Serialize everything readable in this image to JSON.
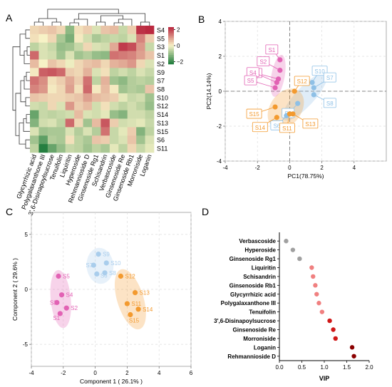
{
  "panel_letters": [
    "A",
    "B",
    "C",
    "D"
  ],
  "chart_data": [
    {
      "panel": "A",
      "type": "heatmap",
      "rows": [
        "S4",
        "S5",
        "S3",
        "S1",
        "S2",
        "S9",
        "S7",
        "S8",
        "S10",
        "S12",
        "S14",
        "S13",
        "S15",
        "S6",
        "S11"
      ],
      "columns": [
        "Glycyrrhizic acid",
        "Polygalaxanthone III",
        "3',6-Disinapoylsucrose",
        "Tenuifolin",
        "Liquiritin",
        "Hyperoside",
        "Rehmannioside D",
        "Ginsenoside Rg1",
        "Schisandrin",
        "Verbascoside",
        "Ginsenoside Re",
        "Ginsenoside Rb1",
        "Morroniside",
        "Loganin"
      ],
      "values": [
        [
          0.3,
          0.4,
          0.5,
          0.3,
          -1.1,
          0.2,
          0.4,
          -0.3,
          0.5,
          0.6,
          -0.5,
          0.4,
          2.1,
          2.2
        ],
        [
          0.2,
          0.0,
          0.3,
          -0.8,
          -1.3,
          0.1,
          -0.4,
          -0.8,
          -0.6,
          -0.5,
          -0.6,
          -0.3,
          1.2,
          0.4
        ],
        [
          -0.6,
          -0.3,
          -0.5,
          -1.0,
          -0.9,
          -0.5,
          0.3,
          -0.3,
          -0.4,
          0.8,
          2.0,
          1.8,
          1.0,
          -0.5
        ],
        [
          1.5,
          -0.3,
          -0.4,
          -0.9,
          -0.3,
          -0.9,
          -0.7,
          -1.0,
          -1.1,
          1.4,
          1.3,
          1.2,
          0.9,
          0.5
        ],
        [
          0.6,
          0.0,
          0.5,
          0.3,
          -0.1,
          0.3,
          0.5,
          0.6,
          0.3,
          0.7,
          0.8,
          1.0,
          0.3,
          -0.3
        ],
        [
          0.1,
          1.6,
          1.7,
          1.5,
          0.4,
          0.3,
          0.7,
          -0.3,
          0.2,
          -0.6,
          -0.4,
          -0.6,
          -0.3,
          -0.5
        ],
        [
          1.4,
          1.1,
          0.2,
          0.4,
          0.8,
          0.4,
          1.4,
          -0.6,
          0.7,
          -0.9,
          -1.1,
          -0.7,
          -0.6,
          -0.7
        ],
        [
          1.2,
          1.0,
          0.1,
          0.3,
          0.9,
          0.2,
          1.5,
          0.1,
          0.6,
          0.1,
          -0.9,
          -0.7,
          -0.8,
          0.5
        ],
        [
          0.5,
          0.4,
          0.3,
          0.3,
          0.4,
          0.5,
          0.9,
          0.6,
          0.5,
          0.4,
          -0.2,
          -0.5,
          -0.4,
          -0.9
        ],
        [
          -0.4,
          -0.5,
          0.3,
          -0.3,
          1.0,
          0.4,
          0.6,
          -0.4,
          0.2,
          -0.4,
          -0.6,
          -0.4,
          -0.6,
          -1.0
        ],
        [
          -1.5,
          -0.5,
          -0.6,
          -0.5,
          -0.4,
          0.6,
          -0.3,
          -0.4,
          -0.2,
          -1.0,
          -1.2,
          -0.4,
          -0.4,
          -0.6
        ],
        [
          -1.2,
          -0.4,
          -0.3,
          -0.6,
          1.5,
          0.3,
          -0.9,
          0.6,
          1.7,
          0.4,
          -0.4,
          -0.3,
          -0.2,
          -0.5
        ],
        [
          -0.3,
          -0.9,
          -0.8,
          -0.8,
          -0.3,
          -0.7,
          -0.3,
          -0.7,
          1.4,
          -0.5,
          -0.2,
          0.4,
          -1.2,
          -0.6
        ],
        [
          -0.9,
          -1.6,
          -0.7,
          -0.8,
          0.2,
          -0.6,
          -0.8,
          0.5,
          0.4,
          -0.5,
          -0.3,
          0.5,
          -0.9,
          -0.3
        ],
        [
          -0.6,
          -2.2,
          -1.5,
          -1.0,
          -0.5,
          -0.6,
          -0.9,
          -0.6,
          -0.8,
          -0.2,
          -0.6,
          0.3,
          -0.5,
          -0.2
        ]
      ],
      "legend_ticks": [
        2,
        0,
        -2
      ],
      "color_scale": {
        "low": "#1b7a3a",
        "mid": "#f7f2c6",
        "high": "#b8203a"
      }
    },
    {
      "panel": "B",
      "type": "scatter",
      "xlabel": "PC1(78.75%)",
      "ylabel": "PC2(14.14%)",
      "xlim": [
        -4,
        6
      ],
      "ylim": [
        -4,
        4
      ],
      "xticks": [
        -4,
        -2,
        0,
        2,
        4
      ],
      "yticks": [
        -4,
        -2,
        0,
        2,
        4
      ],
      "series": [
        {
          "color": "#e262b4",
          "points": [
            {
              "label": "S1",
              "x": -0.6,
              "y": 1.8
            },
            {
              "label": "S2",
              "x": -0.6,
              "y": 1.2
            },
            {
              "label": "S3",
              "x": -0.7,
              "y": 0.7
            },
            {
              "label": "S4",
              "x": -0.8,
              "y": 0.5
            },
            {
              "label": "S5",
              "x": -0.9,
              "y": 0.2
            }
          ]
        },
        {
          "color": "#8ec0e6",
          "points": [
            {
              "label": "S10",
              "x": 1.4,
              "y": 0.5
            },
            {
              "label": "S7",
              "x": 1.5,
              "y": 0.2
            },
            {
              "label": "S8",
              "x": 1.5,
              "y": -0.2
            },
            {
              "label": "S9",
              "x": 0.5,
              "y": -0.7
            },
            {
              "label": "S6",
              "x": -0.2,
              "y": -1.4
            }
          ]
        },
        {
          "color": "#f39a2f",
          "points": [
            {
              "label": "S12",
              "x": 0.3,
              "y": 0.0
            },
            {
              "label": "S15",
              "x": -0.9,
              "y": -0.9
            },
            {
              "label": "S14",
              "x": -0.8,
              "y": -1.5
            },
            {
              "label": "S11",
              "x": 0.0,
              "y": -1.3
            },
            {
              "label": "S13",
              "x": 0.2,
              "y": -1.3
            }
          ]
        }
      ]
    },
    {
      "panel": "C",
      "type": "scatter",
      "xlabel": "Component 1 ( 26.1% )",
      "ylabel": "Component 2 ( 29.6% )",
      "xlim": [
        -4,
        6
      ],
      "ylim": [
        -7,
        7
      ],
      "xticks": [
        -4,
        -2,
        0,
        2,
        4,
        6
      ],
      "yticks": [
        -5,
        0,
        5
      ],
      "series": [
        {
          "color": "#e262b4",
          "points": [
            {
              "label": "S5",
              "x": -2.3,
              "y": 1.2
            },
            {
              "label": "S4",
              "x": -2.1,
              "y": -0.5
            },
            {
              "label": "S3",
              "x": -2.4,
              "y": -1.2
            },
            {
              "label": "S2",
              "x": -1.8,
              "y": -1.7
            },
            {
              "label": "S1",
              "x": -2.2,
              "y": -2.2
            }
          ]
        },
        {
          "color": "#a9cdec",
          "points": [
            {
              "label": "S9",
              "x": 0.2,
              "y": 3.2
            },
            {
              "label": "S7",
              "x": -0.1,
              "y": 2.2
            },
            {
              "label": "S10",
              "x": 0.7,
              "y": 2.4
            },
            {
              "label": "S6",
              "x": 0.1,
              "y": 1.4
            },
            {
              "label": "S8",
              "x": 0.6,
              "y": 1.5
            }
          ]
        },
        {
          "color": "#f39a2f",
          "points": [
            {
              "label": "S12",
              "x": 1.6,
              "y": 1.2
            },
            {
              "label": "S13",
              "x": 2.5,
              "y": -0.3
            },
            {
              "label": "S11",
              "x": 2.0,
              "y": -1.3
            },
            {
              "label": "S14",
              "x": 2.7,
              "y": -1.8
            },
            {
              "label": "S15",
              "x": 2.2,
              "y": -2.3
            }
          ]
        }
      ]
    },
    {
      "panel": "D",
      "type": "scatter",
      "xlabel": "VIP",
      "xlim": [
        0.0,
        2.0
      ],
      "xticks": [
        0.0,
        0.5,
        1.0,
        1.5,
        2.0
      ],
      "categories": [
        "Verbascoside",
        "Hyperoside",
        "Ginsenoside Rg1",
        "Liquiritin",
        "Schisandrin",
        "Ginsenoside Rb1",
        "Glycyrrhizic acid",
        "Polygalaxanthone III",
        "Tenuifolin",
        "3',6-Disinapoylsucrose",
        "Ginsenoside Re",
        "Morroniside",
        "Loganin",
        "Rehmannioside D"
      ],
      "values": [
        0.15,
        0.3,
        0.45,
        0.72,
        0.75,
        0.8,
        0.83,
        0.88,
        0.95,
        1.12,
        1.2,
        1.25,
        1.62,
        1.66
      ],
      "point_colors": [
        "#a0a0a0",
        "#a0a0a0",
        "#a0a0a0",
        "#f08080",
        "#f08080",
        "#f08080",
        "#f08080",
        "#f08080",
        "#f08080",
        "#d01818",
        "#d01818",
        "#d01818",
        "#8b0000",
        "#8b0000"
      ]
    }
  ]
}
